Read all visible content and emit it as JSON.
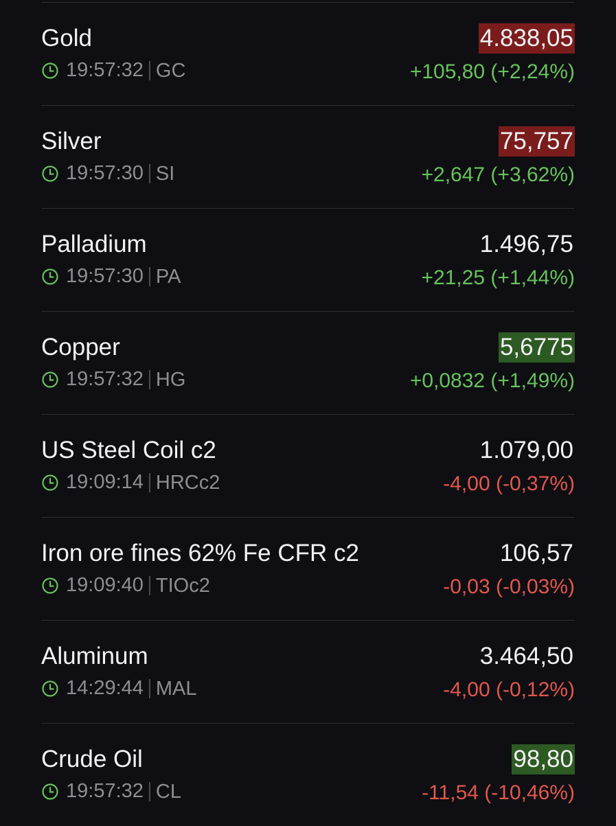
{
  "rows": [
    {
      "name": "Gold",
      "time": "19:57:32",
      "symbol": "GC",
      "price": "4.838,05",
      "change": "+105,80 (+2,24%)",
      "flash": "red"
    },
    {
      "name": "Silver",
      "time": "19:57:30",
      "symbol": "SI",
      "price": "75,757",
      "change": "+2,647 (+3,62%)",
      "flash": "red"
    },
    {
      "name": "Palladium",
      "time": "19:57:30",
      "symbol": "PA",
      "price": "1.496,75",
      "change": "+21,25 (+1,44%)"
    },
    {
      "name": "Copper",
      "time": "19:57:32",
      "symbol": "HG",
      "price": "5,6775",
      "change": "+0,0832 (+1,49%)",
      "flash": "green"
    },
    {
      "name": "US Steel Coil c2",
      "time": "19:09:14",
      "symbol": "HRCc2",
      "price": "1.079,00",
      "change": "-4,00 (-0,37%)"
    },
    {
      "name": "Iron ore fines 62% Fe CFR c2",
      "time": "19:09:40",
      "symbol": "TIOc2",
      "price": "106,57",
      "change": "-0,03 (-0,03%)"
    },
    {
      "name": "Aluminum",
      "time": "14:29:44",
      "symbol": "MAL",
      "price": "3.464,50",
      "change": "-4,00 (-0,12%)"
    },
    {
      "name": "Crude Oil",
      "time": "19:57:32",
      "symbol": "CL",
      "price": "98,80",
      "change": "-11,54 (-10,46%)",
      "flash": "green"
    }
  ]
}
